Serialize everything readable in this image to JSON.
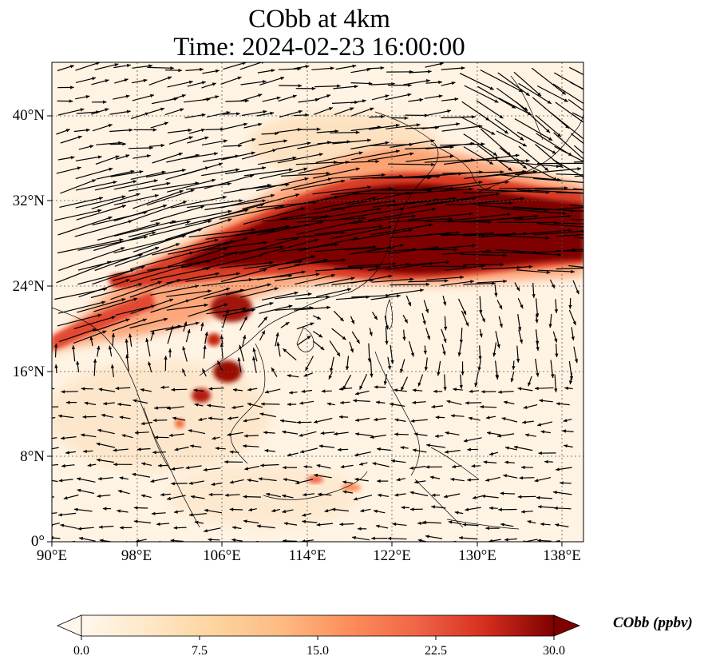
{
  "figure": {
    "title_line1": "CObb at 4km",
    "title_line2": "Time: 2024-02-23 16:00:00"
  },
  "axes": {
    "lat_ticks": [
      "40°N",
      "32°N",
      "24°N",
      "16°N",
      "8°N",
      "0°"
    ],
    "lon_ticks": [
      "90°E",
      "98°E",
      "106°E",
      "114°E",
      "122°E",
      "130°E",
      "138°E"
    ],
    "lon_range": [
      90,
      140
    ],
    "lat_range": [
      0,
      45
    ],
    "gridlines": "dotted"
  },
  "colorbar": {
    "label": "CObb (ppbv)",
    "ticks": [
      "0.0",
      "7.5",
      "15.0",
      "22.5",
      "30.0"
    ],
    "range": [
      0,
      30
    ],
    "colormap": "OrRd",
    "extend": "both"
  },
  "map": {
    "variable": "CObb",
    "level": "4km",
    "plume_color": "#7f0000",
    "background_color": "#fff5e8",
    "vector_color": "#000000"
  }
}
